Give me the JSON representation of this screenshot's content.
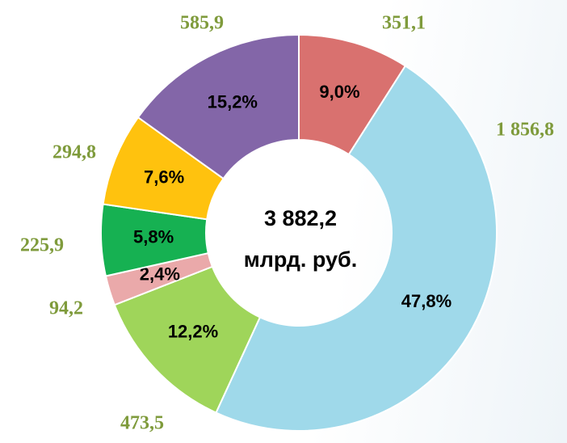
{
  "chart_data": {
    "type": "donut",
    "values": [
      351.1,
      1856.8,
      473.5,
      94.2,
      225.9,
      294.8,
      585.9
    ],
    "value_labels": [
      "351,1",
      "1 856,8",
      "473,5",
      "94,2",
      "225,9",
      "294,8",
      "585,9"
    ],
    "shares": [
      9.0,
      47.8,
      12.2,
      2.4,
      5.8,
      7.6,
      15.2
    ],
    "share_labels": [
      "9,0%",
      "47,8%",
      "12,2%",
      "2,4%",
      "5,8%",
      "7,6%",
      "15,2%"
    ],
    "colors": [
      "#d9716f",
      "#9fd9ea",
      "#9fd55a",
      "#eaa9aa",
      "#16b152",
      "#ffc20e",
      "#8366a8"
    ],
    "center_text": [
      "3 882,2",
      "млрд. руб."
    ]
  }
}
